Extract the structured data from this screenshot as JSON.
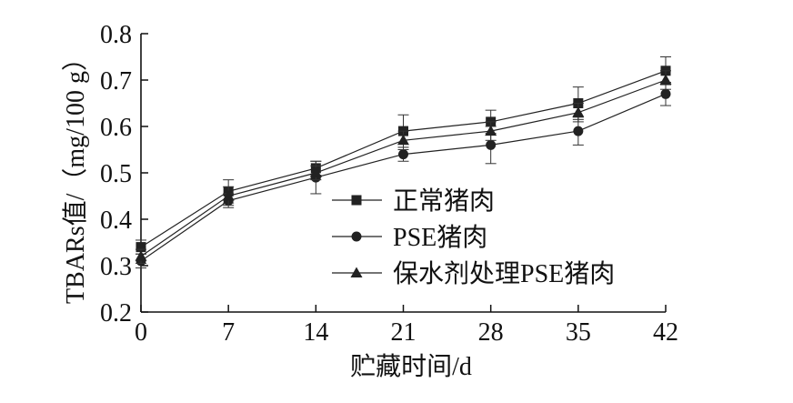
{
  "chart_data": {
    "type": "line",
    "title": "",
    "xlabel": "贮藏时间/d",
    "ylabel": "TBARs值/（mg/100 g）",
    "x": [
      0,
      7,
      14,
      21,
      28,
      35,
      42
    ],
    "xticks": [
      "0",
      "7",
      "14",
      "21",
      "28",
      "35",
      "42"
    ],
    "yticks": [
      "0.2",
      "0.3",
      "0.4",
      "0.5",
      "0.6",
      "0.7",
      "0.8"
    ],
    "xlim": [
      0,
      42
    ],
    "ylim": [
      0.2,
      0.8
    ],
    "grid": false,
    "legend_position": "center",
    "series": [
      {
        "name": "正常猪肉",
        "marker": "square",
        "values": [
          0.34,
          0.46,
          0.51,
          0.59,
          0.61,
          0.65,
          0.72
        ],
        "errors": [
          0.015,
          0.025,
          0.015,
          0.035,
          0.025,
          0.035,
          0.03
        ]
      },
      {
        "name": "PSE猪肉",
        "marker": "circle",
        "values": [
          0.31,
          0.44,
          0.49,
          0.54,
          0.56,
          0.59,
          0.67
        ],
        "errors": [
          0.015,
          0.015,
          0.035,
          0.015,
          0.04,
          0.03,
          0.025
        ]
      },
      {
        "name": "保水剂处理PSE猪肉",
        "marker": "triangle",
        "values": [
          0.32,
          0.45,
          0.5,
          0.57,
          0.59,
          0.63,
          0.7
        ],
        "errors": [
          0.015,
          0.02,
          0.015,
          0.02,
          0.02,
          0.02,
          0.02
        ]
      }
    ]
  }
}
